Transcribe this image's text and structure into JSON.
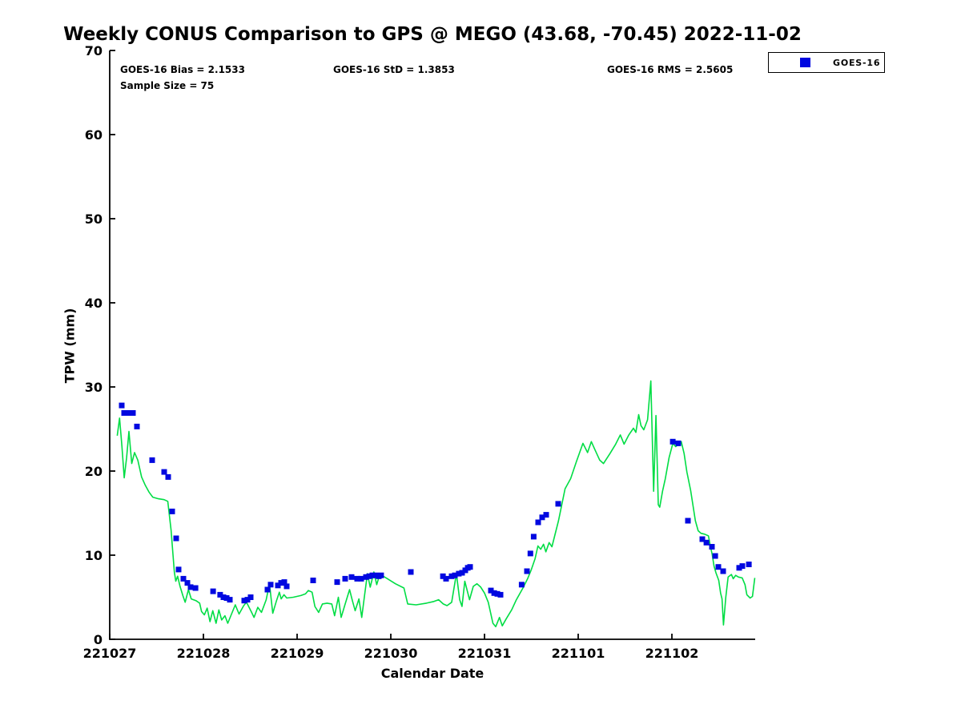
{
  "figure": {
    "title": "Weekly CONUS Comparison to GPS @ MEGO (43.68, -70.45) 2022-11-02",
    "stats": {
      "bias": "GOES-16 Bias = 2.1533",
      "std": "GOES-16 StD = 1.3853",
      "rms": "GOES-16 RMS = 2.5605",
      "sample": "Sample Size = 75"
    },
    "legend": {
      "label": "GOES-16"
    },
    "xlabel": "Calendar Date",
    "ylabel": "TPW (mm)"
  },
  "colors": {
    "gps_line": "#00dd44",
    "goes16_marker": "#0008e0",
    "axis": "#000000",
    "background": "#ffffff"
  },
  "chart_data": {
    "type": "line",
    "title": "Weekly CONUS Comparison to GPS @ MEGO (43.68, -70.45) 2022-11-02",
    "xlabel": "Calendar Date",
    "ylabel": "TPW (mm)",
    "x_tick_labels": [
      "221027",
      "221028",
      "221029",
      "221030",
      "221031",
      "221101",
      "221102"
    ],
    "x_tick_days": [
      0,
      1,
      2,
      3,
      4,
      5,
      6
    ],
    "y_ticks": [
      0,
      10,
      20,
      30,
      40,
      50,
      60,
      70
    ],
    "ylim": [
      0,
      70
    ],
    "xlim_days": [
      0,
      6.89
    ],
    "grid": false,
    "legend_position": "outside-top-right",
    "series": [
      {
        "name": "GPS",
        "type": "line",
        "marker": "none",
        "points": [
          [
            0.08,
            24.2
          ],
          [
            0.105,
            26.3
          ],
          [
            0.13,
            23.0
          ],
          [
            0.155,
            19.2
          ],
          [
            0.18,
            21.6
          ],
          [
            0.205,
            24.7
          ],
          [
            0.235,
            20.9
          ],
          [
            0.265,
            22.2
          ],
          [
            0.3,
            21.3
          ],
          [
            0.34,
            19.3
          ],
          [
            0.38,
            18.3
          ],
          [
            0.42,
            17.5
          ],
          [
            0.46,
            16.9
          ],
          [
            0.52,
            16.7
          ],
          [
            0.58,
            16.6
          ],
          [
            0.62,
            16.4
          ],
          [
            0.655,
            13.0
          ],
          [
            0.69,
            8.0
          ],
          [
            0.705,
            6.9
          ],
          [
            0.725,
            7.5
          ],
          [
            0.75,
            6.3
          ],
          [
            0.78,
            5.2
          ],
          [
            0.805,
            4.4
          ],
          [
            0.84,
            5.9
          ],
          [
            0.87,
            4.8
          ],
          [
            0.92,
            4.6
          ],
          [
            0.96,
            4.3
          ],
          [
            0.98,
            3.3
          ],
          [
            1.01,
            2.9
          ],
          [
            1.04,
            3.7
          ],
          [
            1.07,
            2.1
          ],
          [
            1.1,
            3.4
          ],
          [
            1.135,
            1.9
          ],
          [
            1.165,
            3.5
          ],
          [
            1.195,
            2.3
          ],
          [
            1.23,
            2.8
          ],
          [
            1.26,
            1.9
          ],
          [
            1.3,
            3.0
          ],
          [
            1.34,
            4.1
          ],
          [
            1.38,
            3.0
          ],
          [
            1.43,
            4.0
          ],
          [
            1.46,
            4.4
          ],
          [
            1.51,
            3.3
          ],
          [
            1.54,
            2.6
          ],
          [
            1.58,
            3.8
          ],
          [
            1.62,
            3.2
          ],
          [
            1.67,
            4.7
          ],
          [
            1.705,
            6.6
          ],
          [
            1.74,
            3.1
          ],
          [
            1.78,
            4.6
          ],
          [
            1.81,
            5.6
          ],
          [
            1.83,
            4.8
          ],
          [
            1.86,
            5.3
          ],
          [
            1.89,
            4.9
          ],
          [
            1.96,
            5.0
          ],
          [
            2.04,
            5.2
          ],
          [
            2.09,
            5.4
          ],
          [
            2.12,
            5.8
          ],
          [
            2.16,
            5.6
          ],
          [
            2.19,
            3.9
          ],
          [
            2.23,
            3.2
          ],
          [
            2.27,
            4.2
          ],
          [
            2.32,
            4.3
          ],
          [
            2.37,
            4.2
          ],
          [
            2.4,
            2.8
          ],
          [
            2.44,
            5.0
          ],
          [
            2.47,
            2.6
          ],
          [
            2.51,
            4.1
          ],
          [
            2.56,
            5.9
          ],
          [
            2.59,
            4.6
          ],
          [
            2.62,
            3.4
          ],
          [
            2.66,
            4.8
          ],
          [
            2.69,
            2.6
          ],
          [
            2.72,
            5.2
          ],
          [
            2.75,
            7.8
          ],
          [
            2.78,
            6.2
          ],
          [
            2.82,
            8.0
          ],
          [
            2.85,
            6.5
          ],
          [
            2.885,
            7.8
          ],
          [
            2.92,
            7.5
          ],
          [
            2.95,
            7.3
          ],
          [
            3.05,
            6.6
          ],
          [
            3.14,
            6.1
          ],
          [
            3.18,
            4.2
          ],
          [
            3.27,
            4.1
          ],
          [
            3.38,
            4.3
          ],
          [
            3.46,
            4.5
          ],
          [
            3.51,
            4.7
          ],
          [
            3.56,
            4.2
          ],
          [
            3.6,
            4.0
          ],
          [
            3.65,
            4.4
          ],
          [
            3.7,
            7.8
          ],
          [
            3.735,
            4.7
          ],
          [
            3.76,
            3.9
          ],
          [
            3.79,
            6.9
          ],
          [
            3.84,
            4.7
          ],
          [
            3.88,
            6.3
          ],
          [
            3.92,
            6.6
          ],
          [
            3.96,
            6.2
          ],
          [
            4.0,
            5.5
          ],
          [
            4.04,
            4.4
          ],
          [
            4.09,
            1.9
          ],
          [
            4.12,
            1.5
          ],
          [
            4.16,
            2.6
          ],
          [
            4.19,
            1.6
          ],
          [
            4.23,
            2.4
          ],
          [
            4.29,
            3.5
          ],
          [
            4.34,
            4.7
          ],
          [
            4.41,
            6.1
          ],
          [
            4.46,
            7.2
          ],
          [
            4.5,
            8.3
          ],
          [
            4.54,
            9.6
          ],
          [
            4.57,
            11.1
          ],
          [
            4.6,
            10.7
          ],
          [
            4.63,
            11.3
          ],
          [
            4.655,
            10.4
          ],
          [
            4.69,
            11.5
          ],
          [
            4.72,
            11.0
          ],
          [
            4.79,
            14.1
          ],
          [
            4.86,
            17.9
          ],
          [
            4.92,
            19.1
          ],
          [
            4.98,
            21.1
          ],
          [
            5.05,
            23.3
          ],
          [
            5.1,
            22.2
          ],
          [
            5.14,
            23.5
          ],
          [
            5.18,
            22.5
          ],
          [
            5.23,
            21.3
          ],
          [
            5.27,
            20.9
          ],
          [
            5.34,
            22.1
          ],
          [
            5.4,
            23.2
          ],
          [
            5.45,
            24.3
          ],
          [
            5.49,
            23.2
          ],
          [
            5.54,
            24.3
          ],
          [
            5.59,
            25.1
          ],
          [
            5.615,
            24.6
          ],
          [
            5.645,
            26.7
          ],
          [
            5.67,
            25.4
          ],
          [
            5.7,
            24.9
          ],
          [
            5.74,
            26.1
          ],
          [
            5.775,
            30.7
          ],
          [
            5.805,
            17.6
          ],
          [
            5.83,
            26.6
          ],
          [
            5.855,
            16.0
          ],
          [
            5.87,
            15.7
          ],
          [
            5.9,
            17.6
          ],
          [
            5.93,
            19.1
          ],
          [
            5.97,
            21.6
          ],
          [
            6.01,
            23.3
          ],
          [
            6.04,
            22.9
          ],
          [
            6.08,
            23.3
          ],
          [
            6.1,
            23.5
          ],
          [
            6.13,
            22.1
          ],
          [
            6.16,
            19.9
          ],
          [
            6.2,
            17.7
          ],
          [
            6.22,
            16.3
          ],
          [
            6.25,
            14.1
          ],
          [
            6.28,
            12.9
          ],
          [
            6.31,
            12.6
          ],
          [
            6.35,
            12.5
          ],
          [
            6.39,
            12.3
          ],
          [
            6.41,
            11.1
          ],
          [
            6.43,
            10.1
          ],
          [
            6.45,
            8.7
          ],
          [
            6.47,
            7.9
          ],
          [
            6.5,
            7.0
          ],
          [
            6.52,
            5.5
          ],
          [
            6.535,
            4.8
          ],
          [
            6.55,
            1.7
          ],
          [
            6.575,
            5.0
          ],
          [
            6.6,
            7.4
          ],
          [
            6.635,
            7.7
          ],
          [
            6.655,
            7.2
          ],
          [
            6.68,
            7.6
          ],
          [
            6.71,
            7.4
          ],
          [
            6.75,
            7.3
          ],
          [
            6.78,
            6.5
          ],
          [
            6.8,
            5.3
          ],
          [
            6.835,
            4.9
          ],
          [
            6.86,
            5.1
          ],
          [
            6.885,
            7.3
          ]
        ]
      },
      {
        "name": "GOES-16",
        "type": "scatter",
        "marker": "square",
        "marker_size": 7,
        "points": [
          [
            0.128,
            27.8
          ],
          [
            0.154,
            26.9
          ],
          [
            0.197,
            26.9
          ],
          [
            0.248,
            26.9
          ],
          [
            0.291,
            25.3
          ],
          [
            0.453,
            21.3
          ],
          [
            0.581,
            19.9
          ],
          [
            0.624,
            19.3
          ],
          [
            0.667,
            15.2
          ],
          [
            0.709,
            12.0
          ],
          [
            0.735,
            8.3
          ],
          [
            0.786,
            7.2
          ],
          [
            0.829,
            6.7
          ],
          [
            0.863,
            6.2
          ],
          [
            0.915,
            6.1
          ],
          [
            1.103,
            5.7
          ],
          [
            1.179,
            5.3
          ],
          [
            1.214,
            5.0
          ],
          [
            1.248,
            4.9
          ],
          [
            1.282,
            4.7
          ],
          [
            1.436,
            4.6
          ],
          [
            1.47,
            4.7
          ],
          [
            1.504,
            5.0
          ],
          [
            1.684,
            5.9
          ],
          [
            1.718,
            6.5
          ],
          [
            1.795,
            6.4
          ],
          [
            1.829,
            6.7
          ],
          [
            1.863,
            6.8
          ],
          [
            1.889,
            6.3
          ],
          [
            2.171,
            7.0
          ],
          [
            2.427,
            6.8
          ],
          [
            2.513,
            7.2
          ],
          [
            2.581,
            7.4
          ],
          [
            2.641,
            7.2
          ],
          [
            2.684,
            7.2
          ],
          [
            2.735,
            7.4
          ],
          [
            2.769,
            7.5
          ],
          [
            2.803,
            7.6
          ],
          [
            2.838,
            7.6
          ],
          [
            2.872,
            7.5
          ],
          [
            2.897,
            7.6
          ],
          [
            3.214,
            8.0
          ],
          [
            3.556,
            7.5
          ],
          [
            3.59,
            7.2
          ],
          [
            3.65,
            7.5
          ],
          [
            3.684,
            7.6
          ],
          [
            3.726,
            7.8
          ],
          [
            3.761,
            7.9
          ],
          [
            3.795,
            8.2
          ],
          [
            3.821,
            8.5
          ],
          [
            3.846,
            8.6
          ],
          [
            4.068,
            5.8
          ],
          [
            4.103,
            5.5
          ],
          [
            4.137,
            5.4
          ],
          [
            4.171,
            5.3
          ],
          [
            4.397,
            6.5
          ],
          [
            4.453,
            8.1
          ],
          [
            4.49,
            10.2
          ],
          [
            4.525,
            12.2
          ],
          [
            4.573,
            13.9
          ],
          [
            4.615,
            14.5
          ],
          [
            4.658,
            14.8
          ],
          [
            4.786,
            16.1
          ],
          [
            6.009,
            23.5
          ],
          [
            6.068,
            23.3
          ],
          [
            6.171,
            14.1
          ],
          [
            6.325,
            11.9
          ],
          [
            6.368,
            11.5
          ],
          [
            6.427,
            11.0
          ],
          [
            6.462,
            9.9
          ],
          [
            6.496,
            8.6
          ],
          [
            6.547,
            8.1
          ],
          [
            6.718,
            8.5
          ],
          [
            6.752,
            8.7
          ],
          [
            6.821,
            8.9
          ]
        ]
      }
    ]
  }
}
